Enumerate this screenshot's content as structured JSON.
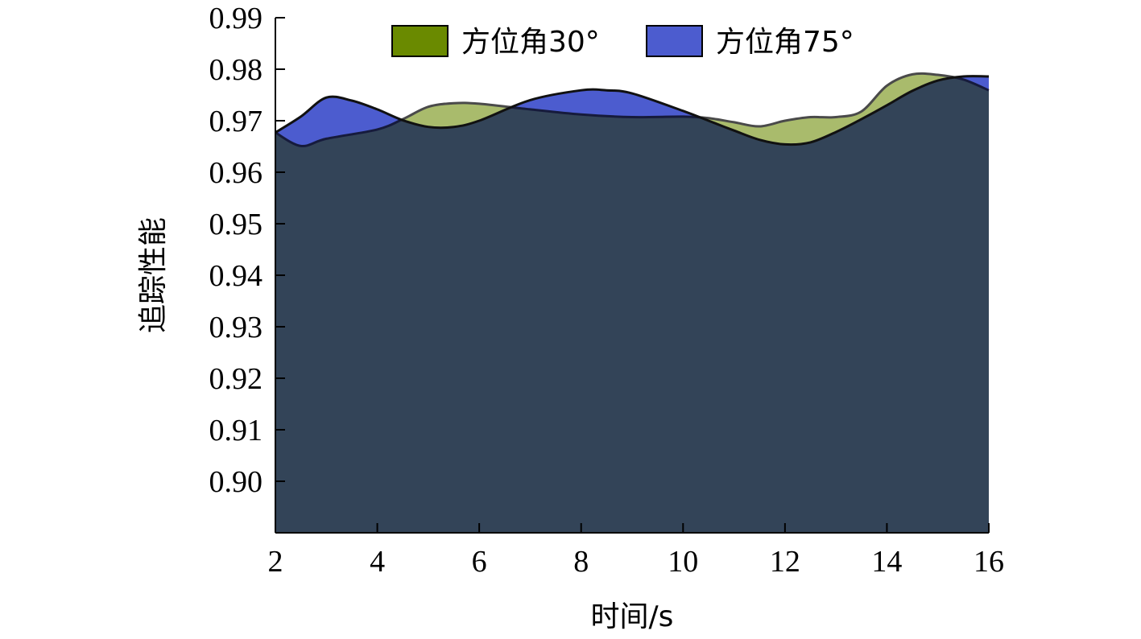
{
  "chart_data": {
    "type": "area",
    "xlabel": "时间/s",
    "ylabel": "追踪性能",
    "xlim": [
      2,
      16
    ],
    "ylim": [
      0.89,
      0.99
    ],
    "x_ticks": [
      2,
      4,
      6,
      8,
      10,
      12,
      14,
      16
    ],
    "x_tick_labels": [
      "2",
      "4",
      "6",
      "8",
      "10",
      "12",
      "14",
      "16"
    ],
    "y_ticks": [
      0.9,
      0.91,
      0.92,
      0.93,
      0.94,
      0.95,
      0.96,
      0.97,
      0.98,
      0.99
    ],
    "y_tick_labels": [
      "0.90",
      "0.91",
      "0.92",
      "0.93",
      "0.94",
      "0.95",
      "0.96",
      "0.97",
      "0.98",
      "0.99"
    ],
    "grid": false,
    "legend_position": "top-center",
    "series": [
      {
        "name": "方位角30°",
        "legend_color": "#6a8a00",
        "fill_color": "#a9bb6c",
        "x": [
          2,
          2.5,
          3,
          4,
          4.5,
          5,
          5.5,
          6,
          7,
          8,
          9,
          10,
          10.5,
          11,
          11.5,
          12,
          12.5,
          13,
          13.5,
          14,
          14.5,
          15,
          15.5,
          16
        ],
        "values": [
          0.9677,
          0.9651,
          0.9665,
          0.9683,
          0.9703,
          0.9727,
          0.9734,
          0.9733,
          0.9722,
          0.9712,
          0.9707,
          0.9708,
          0.9705,
          0.9697,
          0.9689,
          0.97,
          0.9707,
          0.9707,
          0.9718,
          0.9768,
          0.979,
          0.9789,
          0.978,
          0.9759
        ]
      },
      {
        "name": "方位角75°",
        "legend_color": "#4c5ccf",
        "fill_color": "#4c5ccf",
        "x": [
          2,
          2.5,
          3,
          3.5,
          4,
          4.5,
          5,
          5.5,
          6,
          7,
          8,
          8.5,
          9,
          10,
          10.5,
          11,
          11.5,
          12,
          12.5,
          13,
          13.5,
          14,
          14.5,
          15,
          15.5,
          16
        ],
        "values": [
          0.9677,
          0.9708,
          0.9745,
          0.9739,
          0.9722,
          0.9701,
          0.9688,
          0.9688,
          0.97,
          0.974,
          0.9759,
          0.9759,
          0.9753,
          0.9719,
          0.97,
          0.9681,
          0.9663,
          0.9654,
          0.9658,
          0.9678,
          0.9703,
          0.973,
          0.9758,
          0.9778,
          0.9786,
          0.9786
        ]
      }
    ]
  }
}
